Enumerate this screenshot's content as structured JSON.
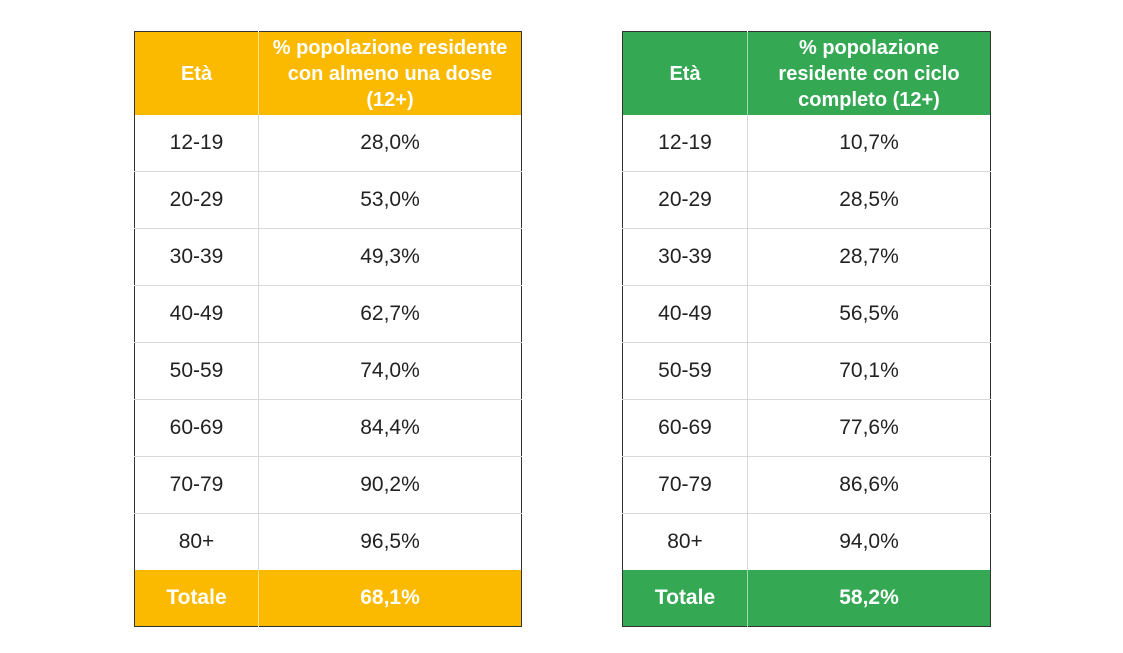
{
  "colors": {
    "left_accent": "#FBBA00",
    "right_accent": "#34A853",
    "header_text": "#FFFFFF",
    "body_text": "#222222"
  },
  "left_table": {
    "header_age": "Età",
    "header_value": "% popolazione residente con almeno una dose (12+)",
    "rows": [
      {
        "age": "12-19",
        "value": "28,0%"
      },
      {
        "age": "20-29",
        "value": "53,0%"
      },
      {
        "age": "30-39",
        "value": "49,3%"
      },
      {
        "age": "40-49",
        "value": "62,7%"
      },
      {
        "age": "50-59",
        "value": "74,0%"
      },
      {
        "age": "60-69",
        "value": "84,4%"
      },
      {
        "age": "70-79",
        "value": "90,2%"
      },
      {
        "age": "80+",
        "value": "96,5%"
      }
    ],
    "total_label": "Totale",
    "total_value": "68,1%"
  },
  "right_table": {
    "header_age": "Età",
    "header_value": "% popolazione residente con ciclo completo (12+)",
    "rows": [
      {
        "age": "12-19",
        "value": "10,7%"
      },
      {
        "age": "20-29",
        "value": "28,5%"
      },
      {
        "age": "30-39",
        "value": "28,7%"
      },
      {
        "age": "40-49",
        "value": "56,5%"
      },
      {
        "age": "50-59",
        "value": "70,1%"
      },
      {
        "age": "60-69",
        "value": "77,6%"
      },
      {
        "age": "70-79",
        "value": "86,6%"
      },
      {
        "age": "80+",
        "value": "94,0%"
      }
    ],
    "total_label": "Totale",
    "total_value": "58,2%"
  }
}
